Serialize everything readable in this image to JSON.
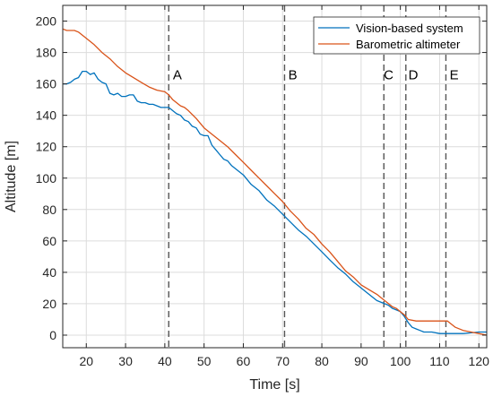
{
  "chart_data": {
    "type": "line",
    "xlabel": "Time [s]",
    "ylabel": "Altitude [m]",
    "xlim": [
      14,
      122
    ],
    "ylim": [
      -8,
      210
    ],
    "xticks": [
      20,
      30,
      40,
      50,
      60,
      70,
      80,
      90,
      100,
      110,
      120
    ],
    "yticks": [
      0,
      20,
      40,
      60,
      80,
      100,
      120,
      140,
      160,
      180,
      200
    ],
    "grid": true,
    "legend_position": "top-right",
    "series": [
      {
        "name": "Vision-based system",
        "color": "#0072BD",
        "x": [
          14,
          15,
          16,
          17,
          18,
          19,
          20,
          21,
          22,
          23,
          24,
          25,
          26,
          27,
          28,
          29,
          30,
          31,
          32,
          33,
          34,
          35,
          36,
          37,
          38,
          39,
          40,
          41,
          42,
          43,
          44,
          45,
          46,
          47,
          48,
          49,
          50,
          51,
          52,
          53,
          54,
          55,
          56,
          57,
          58,
          59,
          60,
          62,
          64,
          66,
          68,
          70,
          72,
          74,
          76,
          78,
          80,
          82,
          84,
          86,
          88,
          90,
          92,
          94,
          96,
          97,
          98,
          99,
          100,
          101,
          102,
          103,
          104,
          105,
          106,
          108,
          110,
          112,
          114,
          116,
          118,
          120,
          122
        ],
        "values": [
          160,
          160,
          161,
          163,
          164,
          168,
          168,
          166,
          167,
          163,
          161,
          160,
          154,
          153,
          154,
          152,
          152,
          153,
          153,
          149,
          148,
          148,
          147,
          147,
          146,
          145,
          145,
          145,
          143,
          141,
          140,
          137,
          136,
          133,
          132,
          128,
          127,
          127,
          121,
          118,
          115,
          112,
          111,
          108,
          106,
          104,
          102,
          96,
          92,
          86,
          82,
          77,
          72,
          67,
          63,
          58,
          53,
          48,
          43,
          39,
          34,
          30,
          26,
          22,
          20,
          19,
          17,
          16,
          15,
          12,
          8,
          5,
          4,
          3,
          2,
          2,
          1,
          1,
          1,
          1,
          1.5,
          2,
          2
        ]
      },
      {
        "name": "Barometric altimeter",
        "color": "#D95319",
        "x": [
          14,
          15,
          16,
          17,
          18,
          19,
          20,
          22,
          24,
          26,
          28,
          30,
          32,
          34,
          36,
          38,
          40,
          41,
          42,
          43,
          44,
          45,
          46,
          48,
          50,
          52,
          54,
          56,
          58,
          60,
          62,
          64,
          66,
          68,
          70,
          72,
          74,
          76,
          78,
          80,
          82,
          84,
          86,
          88,
          90,
          92,
          94,
          96,
          98,
          99,
          100,
          101,
          102,
          104,
          106,
          108,
          110,
          111,
          112,
          113,
          114,
          116,
          118,
          120,
          122
        ],
        "values": [
          195,
          194,
          194,
          194,
          193,
          191,
          189,
          185,
          180,
          176,
          171,
          167,
          164,
          161,
          158,
          156,
          155,
          153,
          150,
          148,
          146,
          145,
          143,
          138,
          132,
          128,
          124,
          120,
          115,
          110,
          105,
          100,
          95,
          90,
          85,
          79,
          74,
          68,
          64,
          58,
          53,
          47,
          41,
          37,
          32,
          29,
          26,
          22,
          18,
          17,
          15,
          13,
          10,
          9,
          9,
          9,
          9,
          9,
          9,
          7,
          5,
          3,
          2,
          1,
          0
        ]
      }
    ],
    "vlines": [
      41,
      70.5,
      95.8,
      101.4,
      111.6
    ],
    "phase_labels": [
      {
        "text": "A",
        "x": 43.2,
        "y": 163
      },
      {
        "text": "B",
        "x": 72.6,
        "y": 163
      },
      {
        "text": "C",
        "x": 97.0,
        "y": 163
      },
      {
        "text": "D",
        "x": 103.3,
        "y": 163
      },
      {
        "text": "E",
        "x": 113.7,
        "y": 163
      }
    ]
  }
}
